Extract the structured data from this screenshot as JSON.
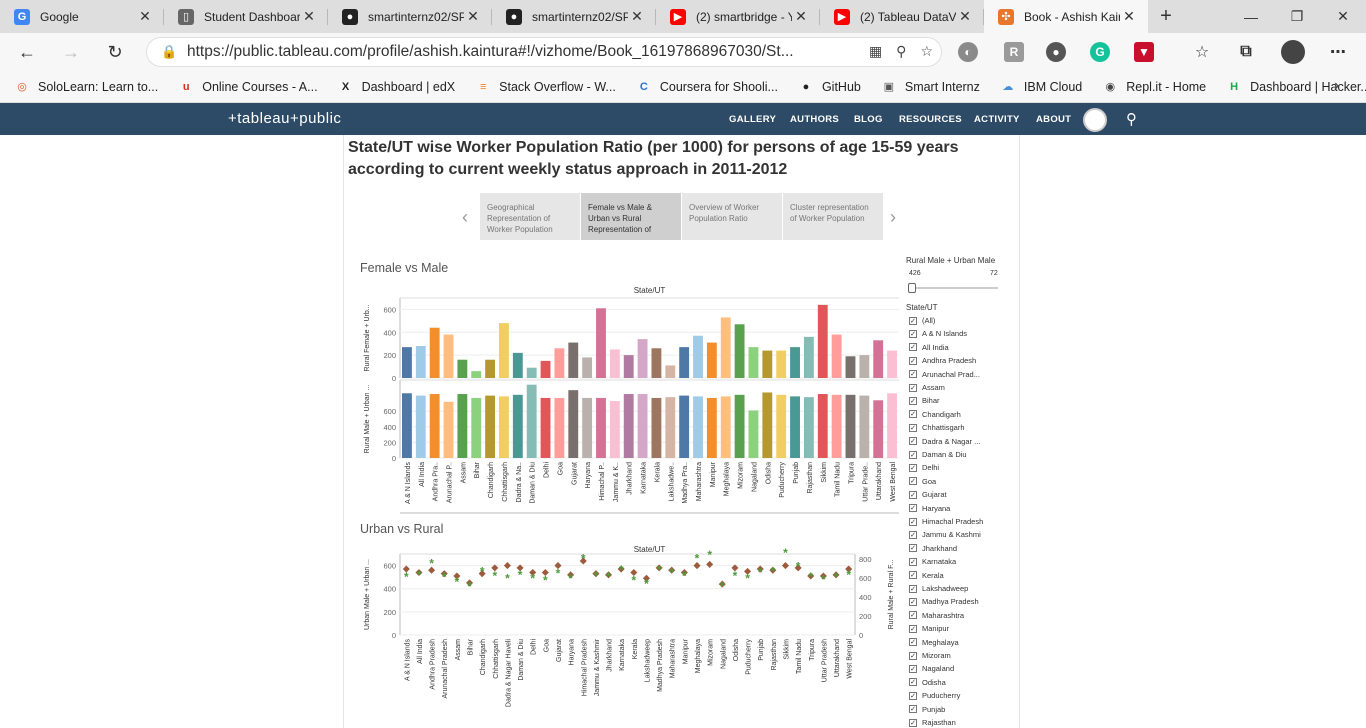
{
  "browser": {
    "tabs": [
      {
        "title": "Google",
        "icon": "google-icon",
        "color": "#4285f4",
        "glyph": "G"
      },
      {
        "title": "Student Dashboard",
        "icon": "document-icon",
        "color": "#666",
        "glyph": "▯"
      },
      {
        "title": "smartinternz02/SP",
        "icon": "github-icon",
        "color": "#222",
        "glyph": "●"
      },
      {
        "title": "smartinternz02/SP",
        "icon": "github-icon",
        "color": "#222",
        "glyph": "●"
      },
      {
        "title": "(2) smartbridge - Y",
        "icon": "youtube-icon",
        "color": "#ff0000",
        "glyph": "▶"
      },
      {
        "title": "(2) Tableau DataVi",
        "icon": "youtube-icon",
        "color": "#ff0000",
        "glyph": "▶"
      },
      {
        "title": "Book - Ashish Kair",
        "icon": "tableau-icon",
        "color": "#e8762b",
        "glyph": "✣"
      }
    ],
    "url": "https://public.tableau.com/profile/ashish.kaintura#!/vizhome/Book_16197868967030/St...",
    "bookmarks": [
      {
        "label": "SoloLearn: Learn to...",
        "icon": "sololearn-icon",
        "color": "#e05a2b",
        "glyph": "◎"
      },
      {
        "label": "Online Courses - A...",
        "icon": "udemy-icon",
        "color": "#d4321c",
        "glyph": "u"
      },
      {
        "label": "Dashboard | edX",
        "icon": "edx-icon",
        "color": "#222",
        "glyph": "X"
      },
      {
        "label": "Stack Overflow - W...",
        "icon": "stackoverflow-icon",
        "color": "#f48024",
        "glyph": "≡"
      },
      {
        "label": "Coursera for Shooli...",
        "icon": "coursera-icon",
        "color": "#2a73cc",
        "glyph": "C"
      },
      {
        "label": "GitHub",
        "icon": "github-icon",
        "color": "#222",
        "glyph": "●"
      },
      {
        "label": "Smart Internz",
        "icon": "smartinternz-icon",
        "color": "#555",
        "glyph": "▣"
      },
      {
        "label": "IBM Cloud",
        "icon": "cloud-icon",
        "color": "#4a90d9",
        "glyph": "☁"
      },
      {
        "label": "Repl.it - Home",
        "icon": "replit-icon",
        "color": "#444",
        "glyph": "◉"
      },
      {
        "label": "Dashboard | Hacker...",
        "icon": "hackerrank-icon",
        "color": "#1ba94c",
        "glyph": "H"
      }
    ]
  },
  "tableau_nav": {
    "logo": "+tableau+public",
    "links": [
      "GALLERY",
      "AUTHORS",
      "BLOG",
      "RESOURCES",
      "ACTIVITY",
      "ABOUT"
    ]
  },
  "viz": {
    "title": "State/UT wise Worker Population Ratio (per 1000) for persons of age 15-59 years according to current weekly status approach in 2011-2012",
    "story_points": [
      "Geographical Representation of Worker Population",
      "Female vs Male & Urban vs Rural Representation of",
      "Overview of Worker Population Ratio",
      "Cluster representation of Worker Population"
    ],
    "section1_title": "Female vs Male",
    "section2_title": "Urban vs Rural",
    "filter": {
      "slider_title": "Rural Male + Urban Male",
      "slider_min": "426",
      "slider_max": "72",
      "list_title": "State/UT",
      "items": [
        "(All)",
        "A & N Islands",
        "All India",
        "Andhra Pradesh",
        "Arunachal Prad...",
        "Assam",
        "Bihar",
        "Chandigarh",
        "Chhattisgarh",
        "Dadra & Nagar ...",
        "Daman & Diu",
        "Delhi",
        "Goa",
        "Gujarat",
        "Haryana",
        "Himachal Pradesh",
        "Jammu & Kashmi",
        "Jharkhand",
        "Karnataka",
        "Kerala",
        "Lakshadweep",
        "Madhya Pradesh",
        "Maharashtra",
        "Manipur",
        "Meghalaya",
        "Mizoram",
        "Nagaland",
        "Odisha",
        "Puducherry",
        "Punjab",
        "Rajasthan"
      ]
    }
  },
  "chart_data": [
    {
      "type": "bar",
      "title": "State/UT",
      "ylabel": "Rural Female + Urb...",
      "ylim": [
        0,
        700
      ],
      "yticks": [
        "0",
        "200",
        "400",
        "600"
      ],
      "categories": [
        "A & N Islands",
        "All India",
        "Andhra Pra..",
        "Arunachal P..",
        "Assam",
        "Bihar",
        "Chandigarh",
        "Chhattisgarh",
        "Dadra & Na..",
        "Daman & Diu",
        "Delhi",
        "Goa",
        "Gujarat",
        "Haryana",
        "Himachal P..",
        "Jammu & K..",
        "Jharkhand",
        "Karnataka",
        "Kerala",
        "Lakshadwe..",
        "Madhya Pra..",
        "Maharashtra",
        "Manipur",
        "Meghalaya",
        "Mizoram",
        "Nagaland",
        "Odisha",
        "Puducherry",
        "Punjab",
        "Rajasthan",
        "Sikkim",
        "Tamil Nadu",
        "Tripura",
        "Uttar Prade..",
        "Uttarakhand",
        "West Bengal"
      ],
      "values": [
        270,
        280,
        440,
        380,
        160,
        60,
        160,
        480,
        220,
        90,
        150,
        260,
        310,
        180,
        610,
        250,
        200,
        340,
        260,
        110,
        270,
        370,
        310,
        530,
        470,
        270,
        240,
        240,
        270,
        360,
        640,
        380,
        190,
        200,
        330,
        240
      ],
      "colors": [
        "#4e79a7",
        "#a0cbe8",
        "#f28e2b",
        "#ffbe7d",
        "#59a14f",
        "#8cd17d",
        "#b6992d",
        "#f1ce63",
        "#499894",
        "#86bcb6",
        "#e15759",
        "#ff9d9a",
        "#79706e",
        "#bab0ac",
        "#d37295",
        "#fabfd2",
        "#b07aa1",
        "#d4a6c8",
        "#9d7660",
        "#d7b5a6",
        "#4e79a7",
        "#a0cbe8",
        "#f28e2b",
        "#ffbe7d",
        "#59a14f",
        "#8cd17d",
        "#b6992d",
        "#f1ce63",
        "#499894",
        "#86bcb6",
        "#e15759",
        "#ff9d9a",
        "#79706e",
        "#bab0ac",
        "#d37295",
        "#fabfd2"
      ]
    },
    {
      "type": "bar",
      "ylabel": "Rural Male + Urban ...",
      "ylim": [
        0,
        1000
      ],
      "yticks": [
        "0",
        "200",
        "400",
        "600"
      ],
      "categories": [
        "A & N Islands",
        "All India",
        "Andhra Pra..",
        "Arunachal P..",
        "Assam",
        "Bihar",
        "Chandigarh",
        "Chhattisgarh",
        "Dadra & Na..",
        "Daman & Diu",
        "Delhi",
        "Goa",
        "Gujarat",
        "Haryana",
        "Himachal P..",
        "Jammu & K..",
        "Jharkhand",
        "Karnataka",
        "Kerala",
        "Lakshadwe..",
        "Madhya Pra..",
        "Maharashtra",
        "Manipur",
        "Meghalaya",
        "Mizoram",
        "Nagaland",
        "Odisha",
        "Puducherry",
        "Punjab",
        "Rajasthan",
        "Sikkim",
        "Tamil Nadu",
        "Tripura",
        "Uttar Prade..",
        "Uttarakhand",
        "West Bengal"
      ],
      "values": [
        830,
        800,
        820,
        720,
        820,
        770,
        800,
        790,
        810,
        940,
        770,
        770,
        870,
        770,
        770,
        730,
        820,
        820,
        770,
        780,
        800,
        790,
        770,
        790,
        810,
        610,
        840,
        810,
        790,
        780,
        820,
        810,
        810,
        800,
        740,
        830
      ]
    },
    {
      "type": "scatter",
      "title": "State/UT",
      "ylabel": "Urban Male + Urban ...",
      "y2label": "Rural Male + Rural F...",
      "ylim": [
        0,
        700
      ],
      "yticks": [
        "0",
        "200",
        "400",
        "600"
      ],
      "y2ticks": [
        "0",
        "200",
        "400",
        "600",
        "800"
      ],
      "categories": [
        "A & N Islands",
        "All India",
        "Andhra Pradesh",
        "Arunachal Pradesh",
        "Assam",
        "Bihar",
        "Chandigarh",
        "Chhattisgarh",
        "Dadra & Nagar Haveli",
        "Daman & Diu",
        "Delhi",
        "Goa",
        "Gujarat",
        "Haryana",
        "Himachal Pradesh",
        "Jammu & Kashmir",
        "Jharkhand",
        "Karnataka",
        "Kerala",
        "Lakshadweep",
        "Madhya Pradesh",
        "Maharashtra",
        "Manipur",
        "Meghalaya",
        "Mizoram",
        "Nagaland",
        "Odisha",
        "Puducherry",
        "Punjab",
        "Rajasthan",
        "Sikkim",
        "Tamil Nadu",
        "Tripura",
        "Uttar Pradesh",
        "Uttarakhand",
        "West Bengal"
      ],
      "series": [
        {
          "name": "Urban",
          "color": "#9c5b3c",
          "values": [
            570,
            540,
            560,
            530,
            510,
            450,
            530,
            580,
            600,
            580,
            540,
            540,
            600,
            520,
            640,
            530,
            520,
            570,
            540,
            490,
            580,
            560,
            540,
            600,
            610,
            440,
            580,
            550,
            570,
            560,
            600,
            580,
            510,
            510,
            520,
            570
          ]
        },
        {
          "name": "Rural",
          "color": "#4e9a3a",
          "values": [
            500,
            520,
            620,
            500,
            460,
            420,
            550,
            510,
            490,
            520,
            490,
            470,
            530,
            490,
            660,
            510,
            500,
            560,
            470,
            440,
            560,
            540,
            510,
            660,
            690,
            420,
            510,
            490,
            540,
            550,
            710,
            590,
            500,
            480,
            500,
            520
          ]
        }
      ]
    }
  ]
}
